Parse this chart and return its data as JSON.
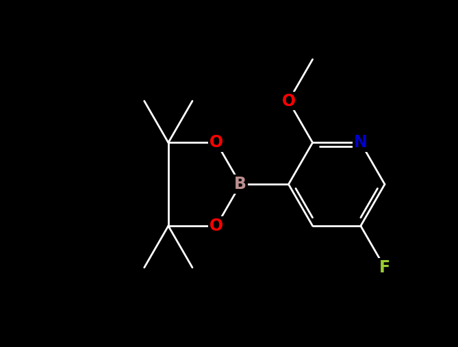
{
  "background_color": "#000000",
  "bond_color": "#ffffff",
  "atom_colors": {
    "B": "#bc8f8f",
    "O": "#ff0000",
    "N": "#0000cd",
    "F": "#9acd32",
    "C": "#ffffff"
  },
  "lw": 2.0,
  "fontsize": 17,
  "fig_width": 6.69,
  "fig_height": 5.07,
  "dpi": 100
}
